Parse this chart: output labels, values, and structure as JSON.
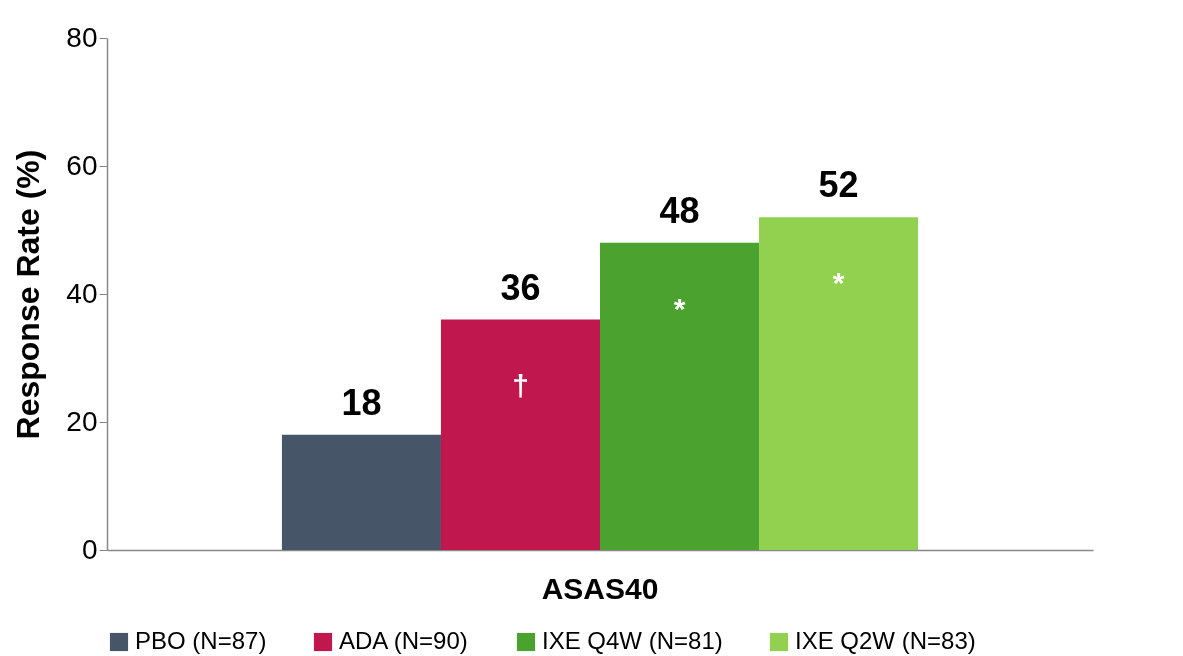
{
  "chart_data": {
    "type": "bar",
    "ylabel": "Response Rate (%)",
    "categories": [
      "ASAS40"
    ],
    "series": [
      {
        "name": "PBO (N=87)",
        "color": "#465668",
        "values": [
          18
        ]
      },
      {
        "name": "ADA (N=90)",
        "color": "#c0174f",
        "values": [
          36
        ]
      },
      {
        "name": "IXE Q4W (N=81)",
        "color": "#4ca22f",
        "values": [
          48
        ]
      },
      {
        "name": "IXE Q2W (N=83)",
        "color": "#92d050",
        "values": [
          52
        ]
      }
    ],
    "ylim": [
      0,
      80
    ],
    "yticks": [
      0,
      20,
      40,
      60,
      80
    ],
    "data_labels": true,
    "legend": "bottom",
    "grid": false,
    "annotations": [
      "†",
      "*",
      "*"
    ]
  }
}
